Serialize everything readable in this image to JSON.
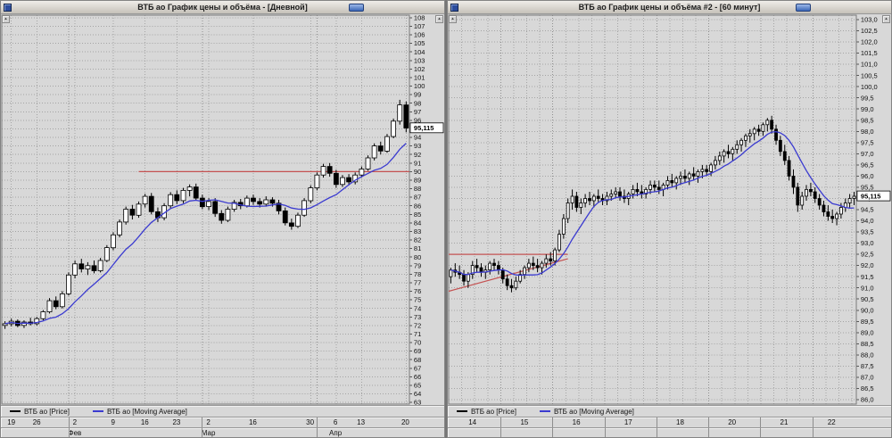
{
  "colors": {
    "chart_bg": "#d8d8d8",
    "grid": "#a4a4a4",
    "candle_up": "#ffffff",
    "candle_down": "#000000",
    "ma": "#3b3bd0",
    "trend": "#c45252",
    "marker_bg": "#ffffff",
    "titlebar_button": "#3a66b6"
  },
  "windows": [
    {
      "title": "ВТБ ао График цены и объёма - [Дневной]",
      "legend": [
        {
          "label": "ВТБ ао [Price]",
          "color": "#000000"
        },
        {
          "label": "ВТБ ао [Moving Average]",
          "color": "#3b3bd0"
        }
      ]
    },
    {
      "title": "ВТБ ао График цены и объёма #2 - [60 минут]",
      "legend": [
        {
          "label": "ВТБ ао [Price]",
          "color": "#000000"
        },
        {
          "label": "ВТБ ао [Moving Average]",
          "color": "#3b3bd0"
        }
      ]
    }
  ],
  "chart_data": [
    {
      "type": "candlestick",
      "title": "ВТБ ао График цены и объёма - [Дневной]",
      "timeframe": "Дневной",
      "ylim": [
        62.8,
        108.3
      ],
      "yticks": {
        "start": 63,
        "end": 108,
        "step": 1,
        "decimals": 0
      },
      "last_price": 95.115,
      "price_label": "95,115",
      "ma_period": 9,
      "grid_x_every": null,
      "xticks": [
        {
          "label": "19",
          "index": 1
        },
        {
          "label": "26",
          "index": 5
        },
        {
          "label": "2",
          "index": 11
        },
        {
          "label": "9",
          "index": 17
        },
        {
          "label": "16",
          "index": 22
        },
        {
          "label": "23",
          "index": 27
        },
        {
          "label": "2",
          "index": 32
        },
        {
          "label": "16",
          "index": 39
        },
        {
          "label": "30",
          "index": 48
        },
        {
          "label": "6",
          "index": 52
        },
        {
          "label": "13",
          "index": 56
        },
        {
          "label": "20",
          "index": 63
        }
      ],
      "boundaries": [
        10.5,
        31.5,
        49.5
      ],
      "months": [
        {
          "label": "Фев",
          "index": 11
        },
        {
          "label": "Мар",
          "index": 32
        },
        {
          "label": "Апр",
          "index": 52
        }
      ],
      "trendlines": [
        {
          "i1": 21,
          "i2": 63.5,
          "p1": 90.0,
          "p2": 90.0
        }
      ],
      "candles": [
        [
          72.0,
          72.5,
          71.6,
          72.2
        ],
        [
          72.2,
          72.8,
          71.9,
          72.5
        ],
        [
          72.5,
          72.7,
          71.8,
          72.0
        ],
        [
          72.0,
          72.6,
          71.7,
          72.4
        ],
        [
          72.4,
          72.9,
          72.0,
          72.2
        ],
        [
          72.2,
          73.0,
          72.0,
          72.8
        ],
        [
          72.8,
          73.8,
          72.6,
          73.6
        ],
        [
          73.6,
          75.2,
          73.4,
          74.9
        ],
        [
          74.9,
          75.4,
          73.9,
          74.2
        ],
        [
          74.2,
          76.0,
          74.0,
          75.7
        ],
        [
          75.7,
          78.2,
          75.5,
          77.9
        ],
        [
          77.9,
          79.6,
          77.5,
          79.2
        ],
        [
          79.2,
          79.8,
          78.2,
          78.6
        ],
        [
          78.6,
          79.4,
          77.9,
          79.0
        ],
        [
          79.0,
          79.6,
          78.1,
          78.4
        ],
        [
          78.4,
          79.9,
          78.2,
          79.6
        ],
        [
          79.6,
          81.4,
          79.4,
          81.1
        ],
        [
          81.1,
          82.9,
          80.8,
          82.6
        ],
        [
          82.6,
          84.4,
          82.3,
          84.1
        ],
        [
          84.1,
          85.9,
          83.8,
          85.6
        ],
        [
          85.6,
          86.1,
          84.4,
          84.9
        ],
        [
          84.9,
          86.5,
          84.6,
          86.2
        ],
        [
          86.2,
          87.4,
          85.8,
          87.1
        ],
        [
          87.1,
          87.5,
          85.0,
          85.3
        ],
        [
          85.3,
          85.8,
          84.1,
          84.6
        ],
        [
          84.6,
          86.3,
          84.3,
          86.0
        ],
        [
          86.0,
          87.6,
          85.7,
          87.3
        ],
        [
          87.3,
          87.8,
          86.2,
          86.6
        ],
        [
          86.6,
          88.1,
          86.3,
          87.8
        ],
        [
          87.8,
          88.5,
          87.1,
          88.2
        ],
        [
          88.2,
          88.6,
          86.6,
          86.9
        ],
        [
          86.9,
          87.3,
          85.6,
          85.9
        ],
        [
          85.9,
          86.9,
          85.5,
          86.5
        ],
        [
          86.5,
          86.9,
          84.7,
          85.1
        ],
        [
          85.1,
          85.5,
          83.9,
          84.3
        ],
        [
          84.3,
          85.9,
          84.1,
          85.6
        ],
        [
          85.6,
          86.7,
          85.3,
          86.4
        ],
        [
          86.4,
          86.8,
          85.6,
          86.0
        ],
        [
          86.0,
          87.2,
          85.8,
          86.9
        ],
        [
          86.9,
          87.3,
          86.1,
          86.5
        ],
        [
          86.5,
          86.9,
          85.8,
          86.2
        ],
        [
          86.2,
          87.1,
          85.9,
          86.7
        ],
        [
          86.7,
          87.0,
          85.9,
          86.3
        ],
        [
          86.3,
          86.7,
          85.0,
          85.4
        ],
        [
          85.4,
          85.8,
          83.7,
          84.0
        ],
        [
          84.0,
          84.5,
          83.2,
          83.6
        ],
        [
          83.6,
          85.2,
          83.4,
          84.9
        ],
        [
          84.9,
          86.9,
          84.7,
          86.6
        ],
        [
          86.6,
          88.4,
          86.3,
          88.1
        ],
        [
          88.1,
          89.9,
          87.8,
          89.6
        ],
        [
          89.6,
          90.9,
          89.3,
          90.6
        ],
        [
          90.6,
          91.0,
          89.4,
          89.8
        ],
        [
          89.8,
          90.2,
          88.1,
          88.5
        ],
        [
          88.5,
          89.6,
          88.2,
          89.3
        ],
        [
          89.3,
          89.7,
          88.4,
          88.8
        ],
        [
          88.8,
          89.9,
          88.5,
          89.6
        ],
        [
          89.6,
          90.6,
          89.3,
          90.3
        ],
        [
          90.3,
          91.9,
          90.1,
          91.6
        ],
        [
          91.6,
          93.3,
          91.3,
          93.0
        ],
        [
          93.0,
          93.5,
          92.0,
          92.4
        ],
        [
          92.4,
          94.4,
          92.2,
          94.1
        ],
        [
          94.1,
          96.2,
          93.9,
          95.9
        ],
        [
          95.9,
          98.4,
          95.5,
          97.8
        ],
        [
          97.8,
          98.2,
          94.6,
          95.1
        ]
      ]
    },
    {
      "type": "candlestick",
      "title": "ВТБ ао График цены и объёма #2 - [60 минут]",
      "timeframe": "60 минут",
      "ylim": [
        85.8,
        103.2
      ],
      "yticks": {
        "start": 86,
        "end": 103,
        "step": 0.5,
        "decimals": 1
      },
      "last_price": 95.115,
      "price_label": "95,115",
      "ma_period": 9,
      "grid_x_every": 3,
      "xticks": [
        {
          "label": "14",
          "index": 5
        },
        {
          "label": "15",
          "index": 17
        },
        {
          "label": "16",
          "index": 29
        },
        {
          "label": "17",
          "index": 41
        },
        {
          "label": "18",
          "index": 53
        },
        {
          "label": "20",
          "index": 65
        },
        {
          "label": "21",
          "index": 77
        },
        {
          "label": "22",
          "index": 88
        }
      ],
      "boundaries": [
        12,
        24,
        36,
        48,
        60,
        72,
        84
      ],
      "months": [],
      "trendlines": [
        {
          "i1": -0.5,
          "i2": 27,
          "p1": 92.5,
          "p2": 92.5
        },
        {
          "i1": -0.5,
          "i2": 27,
          "p1": 90.85,
          "p2": 92.3
        }
      ],
      "candles": [
        [
          91.5,
          91.9,
          91.2,
          91.8
        ],
        [
          91.8,
          92.1,
          91.5,
          91.7
        ],
        [
          91.7,
          92.0,
          91.4,
          91.6
        ],
        [
          91.6,
          91.8,
          91.1,
          91.3
        ],
        [
          91.3,
          91.7,
          91.0,
          91.6
        ],
        [
          91.6,
          92.2,
          91.4,
          92.0
        ],
        [
          92.0,
          92.3,
          91.7,
          91.9
        ],
        [
          91.9,
          92.1,
          91.5,
          91.7
        ],
        [
          91.7,
          92.0,
          91.4,
          91.8
        ],
        [
          91.8,
          92.2,
          91.6,
          92.1
        ],
        [
          92.1,
          92.3,
          91.8,
          92.0
        ],
        [
          92.0,
          92.2,
          91.6,
          91.8
        ],
        [
          91.8,
          91.9,
          91.2,
          91.4
        ],
        [
          91.4,
          91.6,
          90.9,
          91.1
        ],
        [
          91.1,
          91.4,
          90.8,
          91.0
        ],
        [
          91.0,
          91.5,
          90.9,
          91.3
        ],
        [
          91.3,
          91.8,
          91.2,
          91.6
        ],
        [
          91.6,
          92.0,
          91.4,
          91.9
        ],
        [
          91.9,
          92.3,
          91.7,
          92.1
        ],
        [
          92.1,
          92.4,
          91.8,
          92.0
        ],
        [
          92.0,
          92.3,
          91.7,
          91.9
        ],
        [
          91.9,
          92.2,
          91.6,
          92.1
        ],
        [
          92.1,
          92.5,
          91.9,
          92.3
        ],
        [
          92.3,
          92.6,
          92.0,
          92.2
        ],
        [
          92.2,
          92.8,
          92.0,
          92.7
        ],
        [
          92.7,
          93.6,
          92.6,
          93.4
        ],
        [
          93.4,
          94.3,
          93.2,
          94.1
        ],
        [
          94.1,
          95.0,
          93.9,
          94.8
        ],
        [
          94.8,
          95.4,
          94.5,
          95.1
        ],
        [
          95.1,
          95.3,
          94.4,
          94.6
        ],
        [
          94.6,
          95.0,
          94.3,
          94.8
        ],
        [
          94.8,
          95.2,
          94.6,
          95.0
        ],
        [
          95.0,
          95.3,
          94.7,
          94.9
        ],
        [
          94.9,
          95.2,
          94.6,
          95.1
        ],
        [
          95.1,
          95.4,
          94.8,
          95.0
        ],
        [
          95.0,
          95.2,
          94.7,
          94.9
        ],
        [
          94.9,
          95.3,
          94.7,
          95.1
        ],
        [
          95.1,
          95.4,
          94.9,
          95.2
        ],
        [
          95.2,
          95.5,
          95.0,
          95.3
        ],
        [
          95.3,
          95.5,
          94.9,
          95.1
        ],
        [
          95.1,
          95.4,
          94.8,
          95.0
        ],
        [
          95.0,
          95.3,
          94.7,
          95.2
        ],
        [
          95.2,
          95.6,
          95.0,
          95.4
        ],
        [
          95.4,
          95.7,
          95.1,
          95.3
        ],
        [
          95.3,
          95.6,
          95.0,
          95.2
        ],
        [
          95.2,
          95.5,
          95.0,
          95.4
        ],
        [
          95.4,
          95.8,
          95.2,
          95.6
        ],
        [
          95.6,
          95.8,
          95.3,
          95.5
        ],
        [
          95.5,
          95.8,
          95.2,
          95.4
        ],
        [
          95.4,
          95.7,
          95.1,
          95.6
        ],
        [
          95.6,
          96.0,
          95.4,
          95.8
        ],
        [
          95.8,
          96.1,
          95.5,
          95.7
        ],
        [
          95.7,
          96.0,
          95.4,
          95.9
        ],
        [
          95.9,
          96.2,
          95.6,
          96.0
        ],
        [
          96.0,
          96.3,
          95.7,
          95.9
        ],
        [
          95.9,
          96.2,
          95.6,
          96.1
        ],
        [
          96.1,
          96.4,
          95.8,
          96.0
        ],
        [
          96.0,
          96.3,
          95.7,
          96.2
        ],
        [
          96.2,
          96.5,
          95.9,
          96.3
        ],
        [
          96.3,
          96.5,
          96.0,
          96.2
        ],
        [
          96.2,
          96.6,
          96.0,
          96.5
        ],
        [
          96.5,
          96.9,
          96.3,
          96.7
        ],
        [
          96.7,
          97.1,
          96.5,
          96.9
        ],
        [
          96.9,
          97.2,
          96.6,
          97.1
        ],
        [
          97.1,
          97.4,
          96.8,
          97.0
        ],
        [
          97.0,
          97.3,
          96.7,
          97.2
        ],
        [
          97.2,
          97.6,
          97.0,
          97.4
        ],
        [
          97.4,
          97.7,
          97.1,
          97.6
        ],
        [
          97.6,
          97.9,
          97.3,
          97.8
        ],
        [
          97.8,
          98.1,
          97.5,
          97.9
        ],
        [
          97.9,
          98.2,
          97.6,
          98.1
        ],
        [
          98.1,
          98.3,
          97.8,
          98.0
        ],
        [
          98.0,
          98.4,
          97.8,
          98.3
        ],
        [
          98.3,
          98.6,
          98.0,
          98.5
        ],
        [
          98.5,
          98.7,
          97.9,
          98.1
        ],
        [
          98.1,
          98.3,
          97.4,
          97.6
        ],
        [
          97.6,
          97.8,
          96.9,
          97.1
        ],
        [
          97.1,
          97.4,
          96.5,
          96.7
        ],
        [
          96.7,
          96.9,
          95.8,
          96.0
        ],
        [
          96.0,
          96.3,
          95.2,
          95.5
        ],
        [
          95.5,
          95.7,
          94.4,
          94.7
        ],
        [
          94.7,
          95.3,
          94.5,
          95.1
        ],
        [
          95.1,
          95.6,
          94.9,
          95.4
        ],
        [
          95.4,
          95.7,
          95.1,
          95.3
        ],
        [
          95.3,
          95.5,
          94.8,
          95.0
        ],
        [
          95.0,
          95.2,
          94.5,
          94.7
        ],
        [
          94.7,
          94.9,
          94.2,
          94.4
        ],
        [
          94.4,
          94.7,
          94.0,
          94.2
        ],
        [
          94.2,
          94.5,
          93.9,
          94.1
        ],
        [
          94.1,
          94.4,
          93.8,
          94.3
        ],
        [
          94.3,
          94.8,
          94.1,
          94.6
        ],
        [
          94.6,
          95.0,
          94.4,
          94.8
        ],
        [
          94.8,
          95.2,
          94.6,
          95.0
        ],
        [
          95.0,
          95.3,
          94.7,
          95.1
        ]
      ]
    }
  ]
}
